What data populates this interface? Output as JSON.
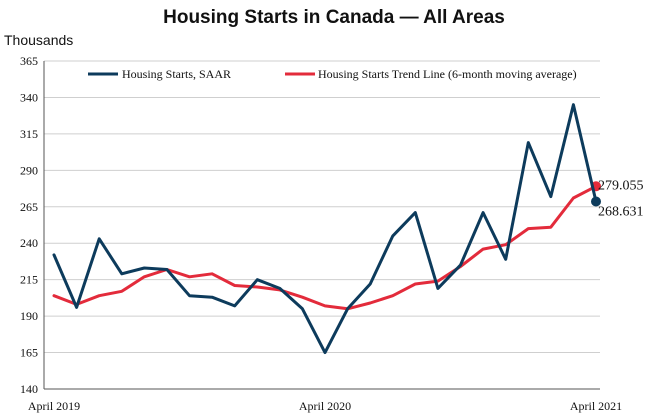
{
  "chart_data": {
    "type": "line",
    "title": "Housing Starts in Canada — All Areas",
    "ylabel": "Thousands",
    "xlabel": "",
    "ylim": [
      140,
      365
    ],
    "yticks": [
      140,
      165,
      190,
      215,
      240,
      265,
      290,
      315,
      340,
      365
    ],
    "x": [
      "2019-04",
      "2019-05",
      "2019-06",
      "2019-07",
      "2019-08",
      "2019-09",
      "2019-10",
      "2019-11",
      "2019-12",
      "2020-01",
      "2020-02",
      "2020-03",
      "2020-04",
      "2020-05",
      "2020-06",
      "2020-07",
      "2020-08",
      "2020-09",
      "2020-10",
      "2020-11",
      "2020-12",
      "2021-01",
      "2021-02",
      "2021-03",
      "2021-04"
    ],
    "xtick_labels": [
      {
        "x": "2019-04",
        "label": "April 2019"
      },
      {
        "x": "2020-04",
        "label": "April 2020"
      },
      {
        "x": "2021-04",
        "label": "April 2021"
      }
    ],
    "grid": "horizontal",
    "legend_position": "top",
    "series": [
      {
        "name": "Housing Starts, SAAR",
        "color": "#0d3b5c",
        "values": [
          232,
          196,
          243,
          219,
          223,
          222,
          204,
          203,
          197,
          215,
          209,
          195,
          165,
          195,
          212,
          245,
          261,
          209,
          225,
          261,
          229,
          309,
          272,
          335,
          268.631
        ],
        "end_label": "268.631"
      },
      {
        "name": "Housing Starts Trend Line (6-month moving average)",
        "color": "#e32b3b",
        "values": [
          204,
          198,
          204,
          207,
          217,
          222,
          217,
          219,
          211,
          210,
          208,
          203,
          197,
          195,
          199,
          204,
          212,
          214,
          224,
          236,
          239,
          250,
          251,
          271,
          279.055
        ],
        "end_label": "279.055"
      }
    ]
  }
}
